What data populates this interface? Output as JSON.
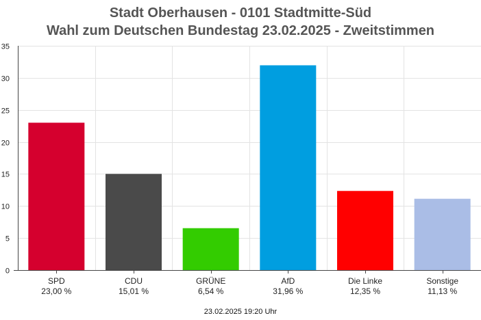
{
  "header": {
    "title": "Stadt Oberhausen - 0101 Stadtmitte-Süd",
    "subtitle": "Wahl zum Deutschen Bundestag 23.02.2025  - Zweitstimmen"
  },
  "footer": {
    "timestamp": "23.02.2025 19:20 Uhr"
  },
  "chart_data": {
    "type": "bar",
    "title": "Stadt Oberhausen - 0101 Stadtmitte-Süd",
    "subtitle": "Wahl zum Deutschen Bundestag 23.02.2025  - Zweitstimmen",
    "categories": [
      "SPD",
      "CDU",
      "GRÜNE",
      "AfD",
      "Die Linke",
      "Sonstige"
    ],
    "values": [
      23.0,
      15.01,
      6.54,
      31.96,
      12.35,
      11.13
    ],
    "value_labels": [
      "23,00 %",
      "15,01 %",
      "6,54 %",
      "31,96 %",
      "12,35 %",
      "11,13 %"
    ],
    "colors": [
      "#d5002e",
      "#4a4a4a",
      "#33cc00",
      "#009ee0",
      "#ff0000",
      "#aabde6"
    ],
    "ylim": [
      0,
      35
    ],
    "yticks": [
      0,
      5,
      10,
      15,
      20,
      25,
      30,
      35
    ],
    "grid": true
  }
}
